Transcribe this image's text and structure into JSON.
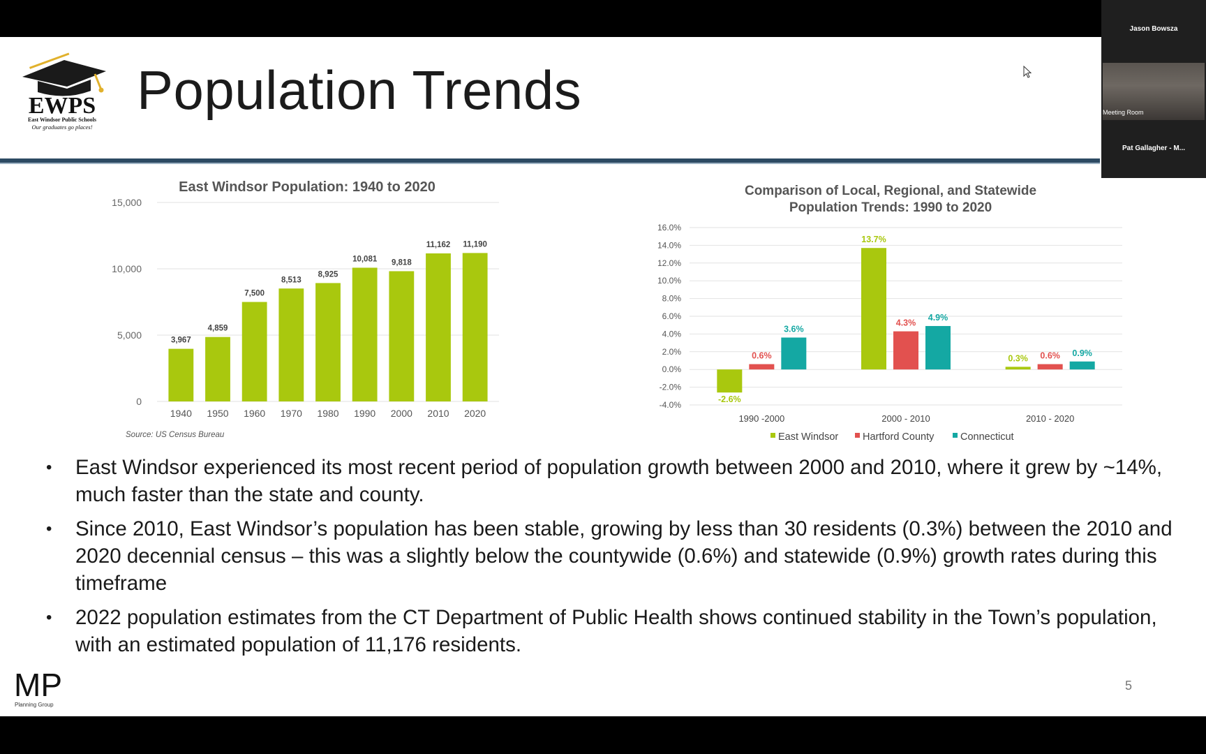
{
  "slide": {
    "title": "Population Trends",
    "page_number": "5",
    "logo": {
      "text": "EWPS",
      "line1": "East Windsor Public Schools",
      "tagline": "Our graduates go places!"
    },
    "footer_logo": {
      "text": "MP",
      "caption": "Planning Group"
    },
    "bullets": [
      "East Windsor experienced its most recent period of population growth between 2000 and 2010, where it grew by ~14%, much faster than the state and county.",
      "Since 2010, East Windsor’s population has been stable, growing by less than 30 residents (0.3%) between the 2010 and 2020 decennial census – this was a slightly below the countywide (0.6%) and statewide (0.9%) growth rates during this timeframe",
      "2022 population estimates from the CT Department of Public Health shows continued stability in the Town’s population, with an estimated population of 11,176 residents."
    ]
  },
  "video_panel": {
    "top_name": "Jason Bowsza",
    "room_label": "Meeting Room",
    "bottom_name": "Pat Gallagher - M..."
  },
  "colors": {
    "green": "#a9c80e",
    "red": "#e2514f",
    "teal": "#14a8a3",
    "rule": "#2d4a63"
  },
  "chart_data": [
    {
      "type": "bar",
      "title": "East Windsor Population: 1940 to 2020",
      "categories": [
        "1940",
        "1950",
        "1960",
        "1970",
        "1980",
        "1990",
        "2000",
        "2010",
        "2020"
      ],
      "values": [
        3967,
        4859,
        7500,
        8513,
        8925,
        10081,
        9818,
        11162,
        11190
      ],
      "value_labels": [
        "3,967",
        "4,859",
        "7,500",
        "8,513",
        "8,925",
        "10,081",
        "9,818",
        "11,162",
        "11,190"
      ],
      "ylim": [
        0,
        15000
      ],
      "yticks": [
        0,
        5000,
        10000,
        15000
      ],
      "ytick_labels": [
        "0",
        "5,000",
        "10,000",
        "15,000"
      ],
      "grid": true,
      "source": "Source: US Census Bureau"
    },
    {
      "type": "bar",
      "title_lines": [
        "Comparison of Local, Regional, and Statewide",
        "Population Trends: 1990 to 2020"
      ],
      "categories": [
        "1990 -2000",
        "2000 - 2010",
        "2010 - 2020"
      ],
      "series": [
        {
          "name": "East Windsor",
          "values": [
            -2.6,
            13.7,
            0.3
          ],
          "labels": [
            "-2.6%",
            "13.7%",
            "0.3%"
          ],
          "color": "#a9c80e"
        },
        {
          "name": "Hartford County",
          "values": [
            0.6,
            4.3,
            0.6
          ],
          "labels": [
            "0.6%",
            "4.3%",
            "0.6%"
          ],
          "color": "#e2514f"
        },
        {
          "name": "Connecticut",
          "values": [
            3.6,
            4.9,
            0.9
          ],
          "labels": [
            "3.6%",
            "4.9%",
            "0.9%"
          ],
          "color": "#14a8a3"
        }
      ],
      "ylim": [
        -4,
        16
      ],
      "yticks": [
        -4,
        -2,
        0,
        2,
        4,
        6,
        8,
        10,
        12,
        14,
        16
      ],
      "ytick_labels": [
        "-4.0%",
        "-2.0%",
        "0.0%",
        "2.0%",
        "4.0%",
        "6.0%",
        "8.0%",
        "10.0%",
        "12.0%",
        "14.0%",
        "16.0%"
      ],
      "grid": true,
      "legend": "bottom"
    }
  ]
}
